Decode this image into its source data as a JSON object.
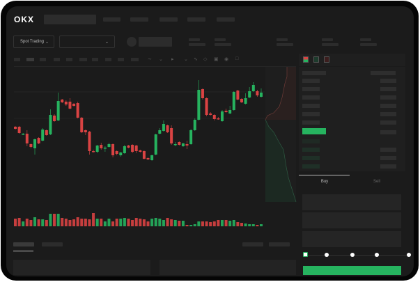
{
  "header": {
    "logo": "OKX"
  },
  "market": {
    "mode_label": "Spot Trading",
    "pair_label": ""
  },
  "trade": {
    "tabs": [
      "Buy",
      "Sell"
    ],
    "active_tab": "Buy",
    "slider_percent": 0
  },
  "colors": {
    "up": "#26b35f",
    "down": "#d94343",
    "background": "#1b1b1b",
    "panel": "#1f1f1f"
  },
  "chart_data": {
    "type": "candlestick",
    "candles": [
      [
        118,
        115,
        119,
        114
      ],
      [
        118,
        109,
        119,
        108
      ],
      [
        107,
        108,
        109,
        106
      ],
      [
        108,
        94,
        113,
        90
      ],
      [
        93,
        89,
        94,
        87
      ],
      [
        87,
        100,
        101,
        78
      ],
      [
        102,
        94,
        103,
        93
      ],
      [
        98,
        114,
        116,
        97
      ],
      [
        113,
        106,
        114,
        105
      ],
      [
        107,
        135,
        143,
        106
      ],
      [
        134,
        126,
        136,
        125
      ],
      [
        127,
        155,
        167,
        126
      ],
      [
        157,
        153,
        158,
        152
      ],
      [
        154,
        150,
        156,
        148
      ],
      [
        154,
        144,
        159,
        143
      ],
      [
        151,
        148,
        152,
        147
      ],
      [
        152,
        131,
        154,
        130
      ],
      [
        131,
        110,
        132,
        109
      ],
      [
        113,
        110,
        114,
        106
      ],
      [
        111,
        83,
        112,
        78
      ],
      [
        83,
        82,
        85,
        81
      ],
      [
        82,
        91,
        92,
        80
      ],
      [
        92,
        87,
        95,
        85
      ],
      [
        87,
        88,
        90,
        82
      ],
      [
        89,
        93,
        95,
        88
      ],
      [
        93,
        77,
        94,
        74
      ],
      [
        83,
        79,
        84,
        77
      ],
      [
        77,
        81,
        82,
        75
      ],
      [
        80,
        90,
        92,
        79
      ],
      [
        91,
        88,
        92,
        87
      ],
      [
        92,
        82,
        93,
        80
      ],
      [
        91,
        83,
        92,
        80
      ],
      [
        84,
        82,
        85,
        81
      ],
      [
        83,
        72,
        84,
        71
      ],
      [
        73,
        71,
        74,
        70
      ],
      [
        70,
        77,
        78,
        69
      ],
      [
        78,
        107,
        108,
        77
      ],
      [
        108,
        113,
        116,
        107
      ],
      [
        112,
        122,
        127,
        111
      ],
      [
        120,
        110,
        121,
        109
      ],
      [
        116,
        94,
        120,
        92
      ],
      [
        92,
        93,
        96,
        90
      ],
      [
        96,
        92,
        97,
        91
      ],
      [
        90,
        94,
        95,
        89
      ],
      [
        93,
        91,
        98,
        86
      ],
      [
        93,
        113,
        115,
        92
      ],
      [
        113,
        128,
        130,
        112
      ],
      [
        128,
        171,
        185,
        127
      ],
      [
        172,
        159,
        173,
        157
      ],
      [
        159,
        135,
        160,
        133
      ],
      [
        137,
        135,
        139,
        134
      ],
      [
        135,
        129,
        136,
        127
      ],
      [
        130,
        129,
        132,
        128
      ],
      [
        126,
        140,
        142,
        125
      ],
      [
        141,
        139,
        144,
        138
      ],
      [
        137,
        142,
        148,
        136
      ],
      [
        142,
        168,
        169,
        141
      ],
      [
        170,
        157,
        171,
        156
      ],
      [
        158,
        153,
        159,
        152
      ],
      [
        151,
        159,
        166,
        150
      ],
      [
        160,
        169,
        175,
        159
      ],
      [
        169,
        178,
        182,
        168
      ],
      [
        169,
        163,
        171,
        161
      ],
      [
        161,
        167,
        173,
        160
      ]
    ],
    "candle_fields": [
      "open",
      "close",
      "high",
      "low"
    ],
    "volume": [
      11,
      12,
      7,
      11,
      9,
      13,
      10,
      10,
      9,
      18,
      18,
      18,
      12,
      11,
      9,
      10,
      13,
      11,
      11,
      10,
      19,
      11,
      11,
      7,
      11,
      7,
      11,
      11,
      12,
      11,
      9,
      12,
      11,
      10,
      7,
      11,
      12,
      11,
      9,
      12,
      10,
      9,
      8,
      8,
      2,
      2,
      3,
      7,
      7,
      7,
      6,
      7,
      9,
      9,
      9,
      8,
      9,
      6,
      5,
      4,
      3,
      3,
      2,
      3
    ]
  }
}
